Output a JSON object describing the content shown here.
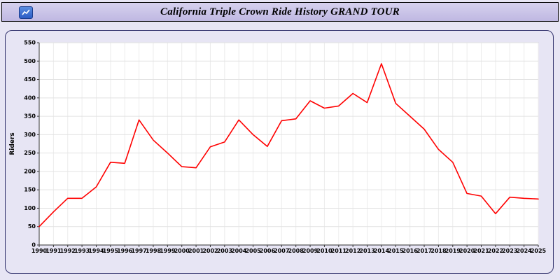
{
  "header": {
    "title": "California Triple Crown Ride History GRAND TOUR",
    "icon": "chart-app-icon"
  },
  "colors": {
    "page_background": "#e7e5f4",
    "title_bar_background": "#c9c2e6",
    "panel_border": "#34346e",
    "plot_background": "#ffffff",
    "gridline": "#e2e2e2",
    "axis": "#333333",
    "line": "#ff0000",
    "icon_blue": "#2c5cc5"
  },
  "chart_data": {
    "type": "line",
    "title": "California Triple Crown Ride History GRAND TOUR",
    "xlabel": "",
    "ylabel": "Riders",
    "ylim": [
      0,
      550
    ],
    "ytick_step": 50,
    "grid": true,
    "legend": "none",
    "line_color": "#ff0000",
    "categories": [
      1990,
      1991,
      1992,
      1993,
      1994,
      1995,
      1996,
      1997,
      1998,
      1999,
      2000,
      2001,
      2002,
      2003,
      2004,
      2005,
      2006,
      2007,
      2008,
      2009,
      2010,
      2011,
      2012,
      2013,
      2014,
      2015,
      2016,
      2017,
      2018,
      2019,
      2020,
      2021,
      2022,
      2023,
      2024,
      2025
    ],
    "values": [
      50,
      90,
      127,
      127,
      158,
      225,
      222,
      340,
      285,
      250,
      213,
      210,
      267,
      280,
      340,
      300,
      268,
      338,
      343,
      392,
      372,
      378,
      412,
      387,
      493,
      385,
      350,
      315,
      260,
      225,
      140,
      133,
      85,
      130,
      127,
      125
    ]
  }
}
